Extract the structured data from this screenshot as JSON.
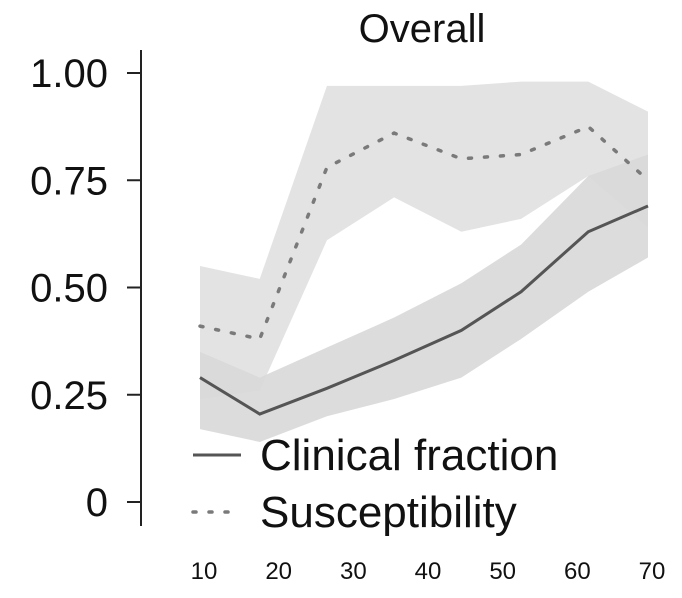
{
  "chart_data": {
    "type": "line",
    "title": "Overall",
    "xlabel": "",
    "ylabel": "",
    "x": [
      10,
      20,
      30,
      40,
      50,
      60,
      70
    ],
    "x_ticks": [
      "10",
      "20",
      "30",
      "40",
      "50",
      "60",
      "70"
    ],
    "y_ticks": [
      "0",
      "0.25",
      "0.50",
      "0.75",
      "1.00"
    ],
    "ylim": [
      0,
      1.0
    ],
    "xlim": [
      10,
      70
    ],
    "grid": false,
    "legend_position": "bottom-left",
    "series": [
      {
        "name": "Clinical fraction",
        "style": "solid",
        "color": "#555555",
        "band_color": "#d0d0d0",
        "x": [
          10,
          18,
          27,
          36,
          45,
          53,
          62,
          70
        ],
        "values": [
          0.29,
          0.205,
          0.265,
          0.33,
          0.4,
          0.49,
          0.63,
          0.69
        ],
        "lower": [
          0.17,
          0.14,
          0.2,
          0.24,
          0.29,
          0.38,
          0.49,
          0.57
        ],
        "upper": [
          0.35,
          0.29,
          0.36,
          0.43,
          0.51,
          0.6,
          0.76,
          0.81
        ]
      },
      {
        "name": "Susceptibility",
        "style": "dotted",
        "color": "#7a7a7a",
        "band_color": "#dadada",
        "x": [
          10,
          18,
          27,
          36,
          45,
          53,
          62,
          70
        ],
        "values": [
          0.41,
          0.38,
          0.78,
          0.86,
          0.8,
          0.81,
          0.875,
          0.75
        ],
        "lower": [
          0.24,
          0.26,
          0.61,
          0.71,
          0.63,
          0.66,
          0.76,
          0.64
        ],
        "upper": [
          0.55,
          0.52,
          0.97,
          0.97,
          0.97,
          0.98,
          0.98,
          0.91
        ]
      }
    ]
  }
}
